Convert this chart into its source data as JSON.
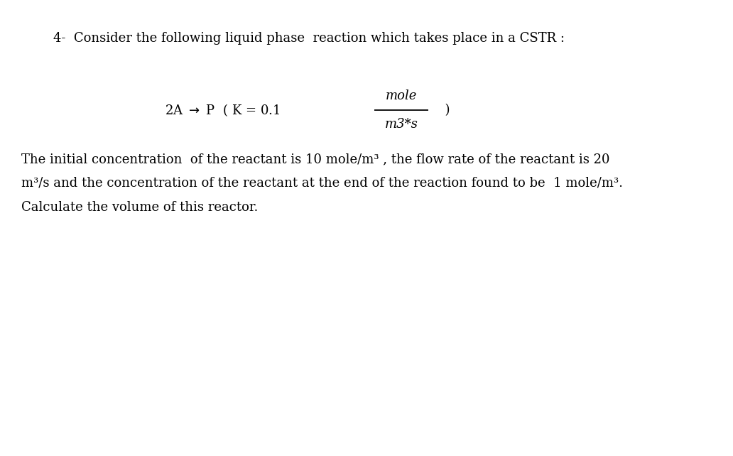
{
  "background_color": "#ffffff",
  "title_text": "4-  Consider the following liquid phase  reaction which takes place in a CSTR :",
  "title_fontsize": 13.0,
  "reaction_fontsize": 13.0,
  "para_fontsize": 13.0,
  "paragraph1_line1": "The initial concentration  of the reactant is 10 mole/m³ , the flow rate of the reactant is 20",
  "paragraph1_line2": "m³/s and the concentration of the reactant at the end of the reaction found to be  1 mole/m³.",
  "paragraph1_line3": "Calculate the volume of this reactor."
}
